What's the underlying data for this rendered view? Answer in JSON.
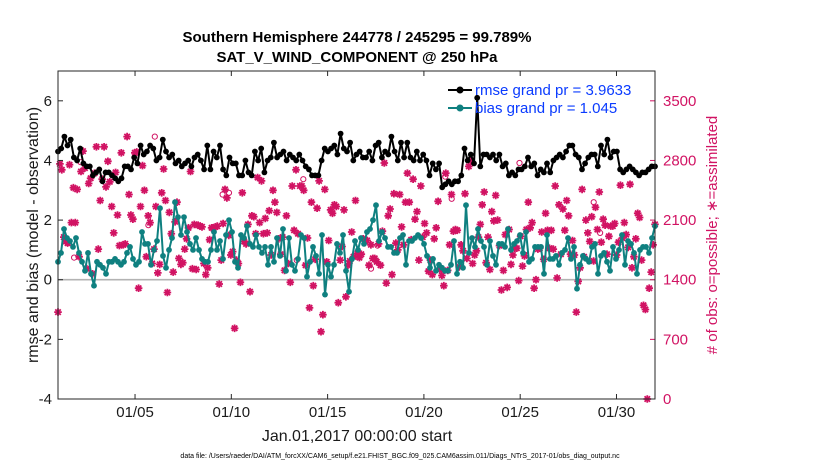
{
  "chart_data": {
    "type": "line",
    "title": "Southern Hemisphere 244778 / 245295 = 99.789%",
    "subtitle": "SAT_V_WIND_COMPONENT @ 250 hPa",
    "xlabel": "Jan.01,2017 00:00:00 start",
    "ylabel": "rmse and bias (model - observation)",
    "ylabel_right": "# of obs: o=possible; ∗=assimilated",
    "x_ticks": [
      "01/05",
      "01/10",
      "01/15",
      "01/20",
      "01/25",
      "01/30"
    ],
    "x_tick_days": [
      5,
      10,
      15,
      20,
      25,
      30
    ],
    "xlim": [
      1,
      32
    ],
    "ylim": [
      -4,
      7
    ],
    "y_ticks": [
      -4,
      -2,
      0,
      2,
      4,
      6
    ],
    "y_right_lim": [
      0,
      3850
    ],
    "y_right_ticks": [
      0,
      700,
      1400,
      2100,
      2800,
      3500
    ],
    "legend_position": "top-right",
    "footnote": "data file: /Users/raeder/DAI/ATM_forcXX/CAM6_setup/f.e21.FHIST_BGC.f09_025.CAM6assim.011/Diags_NTrS_2017-01/obs_diag_output.nc",
    "colors": {
      "rmse": "#000000",
      "bias": "#0f8080",
      "obs": "#d11363",
      "blue_text": "#0a3bff",
      "zero_line": "#b3b3b3"
    },
    "series": [
      {
        "name": "rmse grand pr = 3.9633",
        "values": [
          4.3,
          4.4,
          4.8,
          4.5,
          4.7,
          4.1,
          4.0,
          4.4,
          3.9,
          3.8,
          3.8,
          3.5,
          3.6,
          3.7,
          3.3,
          3.6,
          3.6,
          3.5,
          3.4,
          3.3,
          3.4,
          3.8,
          3.8,
          3.7,
          4.1,
          3.9,
          4.5,
          4.2,
          4.3,
          4.5,
          4.4,
          4.0,
          4.1,
          4.7,
          4.3,
          4.1,
          4.2,
          3.9,
          4.0,
          3.8,
          3.9,
          4.0,
          3.8,
          4.1,
          4.2,
          4.0,
          3.7,
          4.5,
          3.7,
          4.3,
          4.1,
          4.5,
          3.7,
          3.5,
          4.1,
          3.9,
          3.9,
          3.5,
          3.5,
          4.0,
          3.6,
          3.5,
          4.3,
          4.0,
          4.4,
          3.6,
          4.0,
          4.1,
          4.6,
          4.1,
          4.2,
          4.3,
          4.0,
          4.2,
          4.1,
          4.0,
          4.2,
          4.0,
          3.8,
          3.7,
          3.5,
          3.5,
          3.5,
          4.0,
          4.4,
          4.3,
          4.4,
          4.5,
          4.2,
          4.9,
          4.4,
          4.3,
          4.6,
          4.0,
          4.2,
          4.3,
          4.1,
          4.1,
          4.3,
          4.0,
          4.5,
          4.6,
          4.1,
          4.3,
          4.2,
          4.8,
          4.3,
          4.0,
          4.6,
          4.1,
          4.6,
          4.1,
          4.0,
          4.3,
          4.0,
          4.2,
          4.0,
          3.5,
          3.9,
          3.7,
          3.9,
          3.1,
          3.2,
          3.3,
          3.2,
          3.3,
          3.3,
          3.5,
          4.4,
          4.0,
          4.2,
          3.9,
          6.1,
          3.8,
          4.2,
          4.2,
          4.1,
          4.2,
          4.0,
          4.2,
          3.8,
          3.9,
          3.5,
          3.6,
          3.5,
          3.7,
          3.7,
          3.8,
          4.1,
          3.8,
          3.9,
          3.5,
          3.7,
          3.6,
          3.9,
          3.6,
          4.0,
          4.1,
          4.2,
          4.1,
          4.3,
          4.5,
          4.5,
          4.2,
          4.1,
          3.7,
          3.9,
          4.1,
          4.2,
          4.2,
          3.8,
          4.5,
          4.2,
          4.7,
          4.1,
          4.3,
          4.3,
          3.7,
          3.6,
          3.7,
          3.8,
          3.7,
          3.6,
          3.5,
          3.6,
          3.6,
          3.7,
          3.8,
          3.8
        ]
      },
      {
        "name": "bias grand pr = 1.045",
        "values": [
          0.6,
          0.9,
          1.7,
          1.4,
          1.3,
          1.1,
          1.4,
          0.9,
          0.6,
          0.3,
          0.9,
          0.2,
          -0.2,
          0.6,
          0.5,
          0.4,
          0.2,
          0.6,
          0.6,
          0.7,
          0.6,
          0.5,
          0.6,
          0.9,
          1.1,
          0.7,
          0.5,
          0.6,
          1.6,
          1.2,
          1.2,
          0.5,
          1.0,
          1.3,
          2.4,
          0.8,
          0.4,
          1.0,
          1.4,
          2.6,
          2.1,
          1.5,
          2.1,
          1.6,
          1.2,
          1.0,
          1.4,
          1.0,
          0.7,
          0.6,
          0.6,
          1.0,
          1.6,
          1.0,
          1.3,
          0.7,
          1.5,
          2.0,
          1.6,
          0.6,
          0.4,
          1.5,
          1.4,
          1.8,
          1.2,
          1.1,
          1.5,
          1.1,
          0.9,
          1.1,
          0.5,
          1.1,
          0.6,
          1.4,
          0.8,
          1.7,
          0.3,
          1.4,
          0.5,
          0.3,
          0.7,
          1.5,
          1.4,
          0.1,
          0.6,
          1.1,
          0.8,
          0.2,
          1.5,
          -0.5,
          0.5,
          0.1,
          0.5,
          1.2,
          0.9,
          1.5,
          0.3,
          -0.4,
          0.7,
          1.3,
          1.0,
          1.4,
          1.2,
          1.6,
          1.7,
          2.0,
          2.5,
          1.3,
          1.6,
          1.4,
          1.1,
          1.1,
          0.9,
          0.9,
          1.4,
          1.5,
          0.5,
          1.3,
          1.3,
          1.4,
          1.5,
          1.4,
          1.2,
          0.8,
          0.4,
          0.7,
          0.3,
          0.5,
          0.4,
          0.3,
          0.3,
          0.5,
          1.3,
          0.2,
          0.6,
          0.4,
          2.5,
          0.9,
          1.4,
          1.1,
          1.7,
          1.3,
          1.1,
          0.5,
          1.3,
          0.8,
          0.5,
          1.2,
          1.2,
          1.1,
          1.7,
          1.0,
          1.2,
          1.3,
          1.5,
          0.9,
          1.6,
          0.6,
          0.7,
          1.1,
          1.1,
          1.1,
          0.2,
          1.5,
          0.7,
          0.7,
          0.8,
          0.5,
          0.9,
          1.0,
          1.4,
          0.7,
          1.1,
          -0.3,
          0.5,
          0.8,
          0.7,
          0.6,
          1.1,
          1.2,
          0.2,
          0.8,
          0.9,
          0.6,
          0.3,
          1.1,
          0.7,
          1.0,
          1.5,
          0.5,
          1.3,
          1.2,
          0.9,
          0.2,
          1.0,
          1.1,
          1.1,
          0.9,
          1.4,
          1.8
        ]
      },
      {
        "name": "# of obs assimilated",
        "values": [
          1020,
          2760,
          2690,
          1900,
          1850,
          1830,
          2750,
          2070,
          2480,
          2070,
          2460,
          1670,
          2670,
          2910,
          2710,
          1530,
          2530,
          2590,
          1470,
          2650,
          2960,
          1760,
          2330,
          2580,
          2960,
          2490,
          2790,
          2550,
          2260,
          1950,
          2660,
          2160,
          1800,
          2890,
          1810,
          1820,
          3080,
          2400,
          2160,
          2110,
          2890,
          2900,
          1300,
          2260,
          2740,
          2450,
          1670,
          2150,
          2070,
          1590,
          1760,
          2260,
          1480,
          1580,
          2420,
          2700,
          2330,
          1250,
          2190,
          1940,
          1490,
          2080,
          2310,
          1650,
          1580,
          1600,
          1760,
          1880,
          2010,
          2670,
          1530,
          2050,
          1520,
          2040,
          2030,
          2020,
          1590,
          1460,
          1540,
          1870,
          2010,
          2000,
          2020,
          2030,
          1350,
          1630,
          2060,
          2460,
          2360,
          1920,
          1690,
          1730,
          830,
          1630,
          1590,
          1370,
          2420,
          1850,
          1820,
          2050,
          1260,
          2150,
          2140,
          1940,
          2600,
          2070,
          2560,
          1940,
          2120,
          1950,
          2210,
          1690,
          2450,
          2310,
          2190,
          1880,
          1700,
          1900,
          1510,
          2150,
          1590,
          1370,
          2500,
          1980,
          2690,
          1940,
          2500,
          2500,
          2450,
          1570,
          1890,
          1070,
          2310,
          1330,
          1640,
          2240,
          2560,
          790,
          990,
          2460,
          1610,
          1860,
          2220,
          2180,
          2280,
          2260,
          1130,
          1630,
          1790,
          2220,
          1200,
          1570,
          1620,
          1960,
          1670,
          2330,
          1710,
          1660,
          1700,
          1880,
          1870,
          1860,
          1570,
          1810,
          1650,
          1650,
          1610,
          1820,
          1570,
          1970,
          2770,
          1360,
          2150,
          2230,
          1460,
          2410,
          1830,
          1750,
          2400,
          2020,
          1810,
          2310,
          2650,
          2310,
          1870,
          2580,
          2110,
          2200,
          1630,
          2500,
          1900,
          2060,
          1950,
          1500,
          1630,
          1460,
          1880,
          2010,
          2320,
          1520,
          1450,
          1330,
          2650,
          1510,
          1810,
          2400,
          1970,
          1990,
          1980,
          1550,
          1810,
          1740,
          2410,
          1650,
          2730,
          2800,
          1590,
          1690,
          1740,
          1900,
          2050,
          2280,
          2430,
          1600,
          1900,
          1520,
          2200,
          2090,
          2390,
          2100,
          1800,
          1280,
          1510,
          1930,
          1310,
          1990,
          1580,
          1690,
          1770,
          1770,
          1390,
          1910,
          1560,
          1680,
          1990,
          2310,
          2010,
          2070,
          1300,
          1400,
          1760,
          1770,
          1960,
          1640,
          2180,
          1980,
          1770,
          1980,
          1760,
          2500,
          1420,
          2280,
          1700,
          2230,
          1980,
          2330,
          2150,
          1700,
          1860,
          1690,
          1020,
          1380,
          1540,
          2460,
          1670,
          2100,
          1950,
          1850,
          2140,
          1620,
          2250,
          1990,
          2430,
          1840,
          2110,
          2040,
          1700,
          1910,
          2030,
          2030,
          2060,
          1690,
          1840,
          2510,
          1890,
          2070,
          1930,
          1780,
          2520,
          1540,
          1670,
          1880,
          2180,
          2130,
          1630,
          1100,
          1050,
          0,
          1300,
          1490,
          1810,
          2050
        ]
      },
      {
        "name": "# of obs possible",
        "values": [
          2780,
          3080,
          2420,
          2580,
          1800,
          2350,
          1690,
          1950,
          1660,
          2040,
          2400,
          1630,
          1530,
          2610,
          2770,
          2310,
          1830
        ]
      }
    ]
  }
}
